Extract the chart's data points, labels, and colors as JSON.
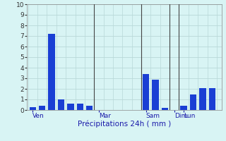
{
  "bar_values": [
    0.3,
    0.4,
    7.2,
    1.0,
    0.6,
    0.6,
    0.4,
    0.0,
    0.0,
    0.0,
    0.0,
    0.0,
    3.4,
    2.9,
    0.2,
    0.0,
    0.4,
    1.5,
    2.1,
    2.1
  ],
  "bar_positions": [
    1,
    2,
    3,
    4,
    5,
    6,
    7,
    8,
    9,
    10,
    11,
    12,
    13,
    14,
    15,
    16,
    17,
    18,
    19,
    20
  ],
  "day_labels": [
    "Ven",
    "Mar",
    "Sam",
    "Dim",
    "Lun"
  ],
  "bar_color": "#1a3fd4",
  "background_color": "#d8f4f4",
  "grid_color": "#b8d8d8",
  "xlabel": "Précipitations 24h ( mm )",
  "ylim": [
    0,
    10
  ],
  "yticks": [
    0,
    1,
    2,
    3,
    4,
    5,
    6,
    7,
    8,
    9,
    10
  ],
  "vline_positions": [
    7.5,
    12.5,
    15.5,
    16.5
  ],
  "vline_color": "#444444",
  "xlim": [
    0.4,
    21
  ]
}
